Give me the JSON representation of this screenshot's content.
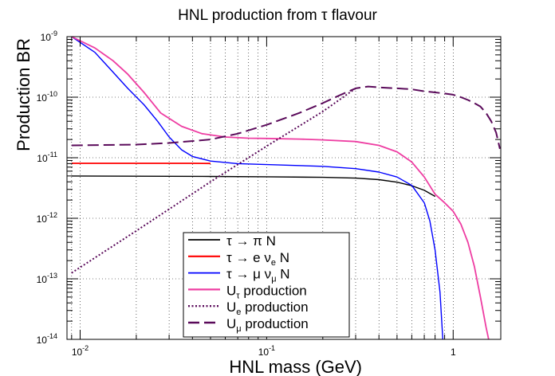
{
  "chart_data": {
    "type": "line",
    "title": "HNL production from τ flavour",
    "xlabel": "HNL mass (GeV)",
    "ylabel": "Production BR",
    "xscale": "log",
    "yscale": "log",
    "xlim": [
      0.0085,
      1.8
    ],
    "ylim": [
      1e-14,
      1e-09
    ],
    "grid": true,
    "legend_position": "bottom-center",
    "x_ticks": [
      {
        "value": 0.01,
        "base": "10",
        "exp": "-2"
      },
      {
        "value": 0.1,
        "base": "10",
        "exp": "-1"
      },
      {
        "value": 1,
        "base": "1",
        "exp": ""
      }
    ],
    "y_ticks": [
      {
        "value": 1e-14,
        "base": "10",
        "exp": "-14"
      },
      {
        "value": 1e-13,
        "base": "10",
        "exp": "-13"
      },
      {
        "value": 1e-12,
        "base": "10",
        "exp": "-12"
      },
      {
        "value": 1e-11,
        "base": "10",
        "exp": "-11"
      },
      {
        "value": 1e-10,
        "base": "10",
        "exp": "-10"
      },
      {
        "value": 1e-09,
        "base": "10",
        "exp": "-9"
      }
    ],
    "series": [
      {
        "name": "τ → π N",
        "color": "#000000",
        "dash": "solid",
        "width": 1.4,
        "legend": {
          "main": "τ → π N",
          "sub": "",
          "tail": ""
        },
        "points": [
          [
            0.009,
            5e-12
          ],
          [
            0.02,
            4.95e-12
          ],
          [
            0.05,
            4.9e-12
          ],
          [
            0.1,
            4.85e-12
          ],
          [
            0.2,
            4.75e-12
          ],
          [
            0.3,
            4.6e-12
          ],
          [
            0.4,
            4.35e-12
          ],
          [
            0.5,
            3.95e-12
          ],
          [
            0.6,
            3.45e-12
          ],
          [
            0.7,
            2.9e-12
          ],
          [
            0.8,
            2.3e-12
          ]
        ]
      },
      {
        "name": "τ → e νe N",
        "color": "#ff0000",
        "dash": "solid",
        "width": 1.8,
        "legend": {
          "main": "τ → e ν",
          "sub": "e",
          "tail": " N"
        },
        "points": [
          [
            0.009,
            8.1e-12
          ],
          [
            0.02,
            8.1e-12
          ],
          [
            0.04,
            8.1e-12
          ],
          [
            0.05,
            8.05e-12
          ]
        ]
      },
      {
        "name": "τ → μ νμ N",
        "color": "#0000ff",
        "dash": "solid",
        "width": 1.4,
        "legend": {
          "main": "τ → μ ν",
          "sub": "μ",
          "tail": " N"
        },
        "points": [
          [
            0.009,
            1e-09
          ],
          [
            0.012,
            5.5e-10
          ],
          [
            0.015,
            2.6e-10
          ],
          [
            0.018,
            1.4e-10
          ],
          [
            0.022,
            7.5e-11
          ],
          [
            0.026,
            4e-11
          ],
          [
            0.03,
            2.2e-11
          ],
          [
            0.035,
            1.35e-11
          ],
          [
            0.04,
            1.05e-11
          ],
          [
            0.05,
            8.8e-12
          ],
          [
            0.07,
            8e-12
          ],
          [
            0.1,
            7.7e-12
          ],
          [
            0.2,
            7.2e-12
          ],
          [
            0.3,
            6.6e-12
          ],
          [
            0.4,
            5.8e-12
          ],
          [
            0.5,
            4.8e-12
          ],
          [
            0.6,
            3.5e-12
          ],
          [
            0.7,
            1.8e-12
          ],
          [
            0.75,
            9e-13
          ],
          [
            0.8,
            3e-13
          ],
          [
            0.85,
            6e-14
          ],
          [
            0.88,
            1e-14
          ]
        ]
      },
      {
        "name": "Uτ production",
        "color": "#ee3da2",
        "dash": "solid",
        "width": 1.8,
        "legend": {
          "main": "U",
          "sub": "τ",
          "tail": " production"
        },
        "points": [
          [
            0.009,
            1e-09
          ],
          [
            0.012,
            6.5e-10
          ],
          [
            0.015,
            4e-10
          ],
          [
            0.018,
            2.4e-10
          ],
          [
            0.022,
            1.2e-10
          ],
          [
            0.027,
            5.5e-11
          ],
          [
            0.035,
            3.3e-11
          ],
          [
            0.045,
            2.5e-11
          ],
          [
            0.06,
            2.2e-11
          ],
          [
            0.08,
            2.1e-11
          ],
          [
            0.1,
            2.08e-11
          ],
          [
            0.15,
            2.03e-11
          ],
          [
            0.2,
            1.97e-11
          ],
          [
            0.3,
            1.85e-11
          ],
          [
            0.4,
            1.6e-11
          ],
          [
            0.5,
            1.25e-11
          ],
          [
            0.6,
            8.5e-12
          ],
          [
            0.7,
            4.8e-12
          ],
          [
            0.8,
            2.5e-12
          ],
          [
            0.9,
            1.8e-12
          ],
          [
            1.0,
            1.3e-12
          ],
          [
            1.1,
            8e-13
          ],
          [
            1.2,
            4e-13
          ],
          [
            1.3,
            1.6e-13
          ],
          [
            1.4,
            5e-14
          ],
          [
            1.5,
            1.6e-14
          ],
          [
            1.55,
            1e-14
          ]
        ]
      },
      {
        "name": "Ue production",
        "color": "#5a0a5a",
        "dash": "dotted",
        "width": 2,
        "legend": {
          "main": "U",
          "sub": "e",
          "tail": " production"
        },
        "points": [
          [
            0.009,
            1.25e-13
          ],
          [
            0.02,
            6.2e-13
          ],
          [
            0.05,
            4e-12
          ],
          [
            0.1,
            1.55e-11
          ],
          [
            0.2,
            5.8e-11
          ],
          [
            0.3,
            1.4e-10
          ]
        ]
      },
      {
        "name": "Uμ production",
        "color": "#5a0a5a",
        "dash": "dashed",
        "width": 2,
        "legend": {
          "main": "U",
          "sub": "μ",
          "tail": " production"
        },
        "points": [
          [
            0.009,
            1.6e-11
          ],
          [
            0.02,
            1.65e-11
          ],
          [
            0.03,
            1.75e-11
          ],
          [
            0.05,
            2e-11
          ],
          [
            0.07,
            2.5e-11
          ],
          [
            0.1,
            3.5e-11
          ],
          [
            0.15,
            5.5e-11
          ],
          [
            0.2,
            8e-11
          ],
          [
            0.25,
            1.1e-10
          ],
          [
            0.3,
            1.4e-10
          ],
          [
            0.35,
            1.5e-10
          ],
          [
            0.4,
            1.45e-10
          ],
          [
            0.5,
            1.4e-10
          ],
          [
            0.6,
            1.35e-10
          ],
          [
            0.7,
            1.25e-10
          ],
          [
            0.8,
            1.2e-10
          ],
          [
            0.9,
            1.15e-10
          ],
          [
            1.0,
            1.1e-10
          ],
          [
            1.1,
            1e-10
          ],
          [
            1.2,
            9e-11
          ],
          [
            1.3,
            8e-11
          ],
          [
            1.4,
            7e-11
          ],
          [
            1.5,
            5.5e-11
          ],
          [
            1.6,
            4e-11
          ],
          [
            1.7,
            2.6e-11
          ],
          [
            1.78,
            1.4e-11
          ]
        ]
      }
    ]
  }
}
